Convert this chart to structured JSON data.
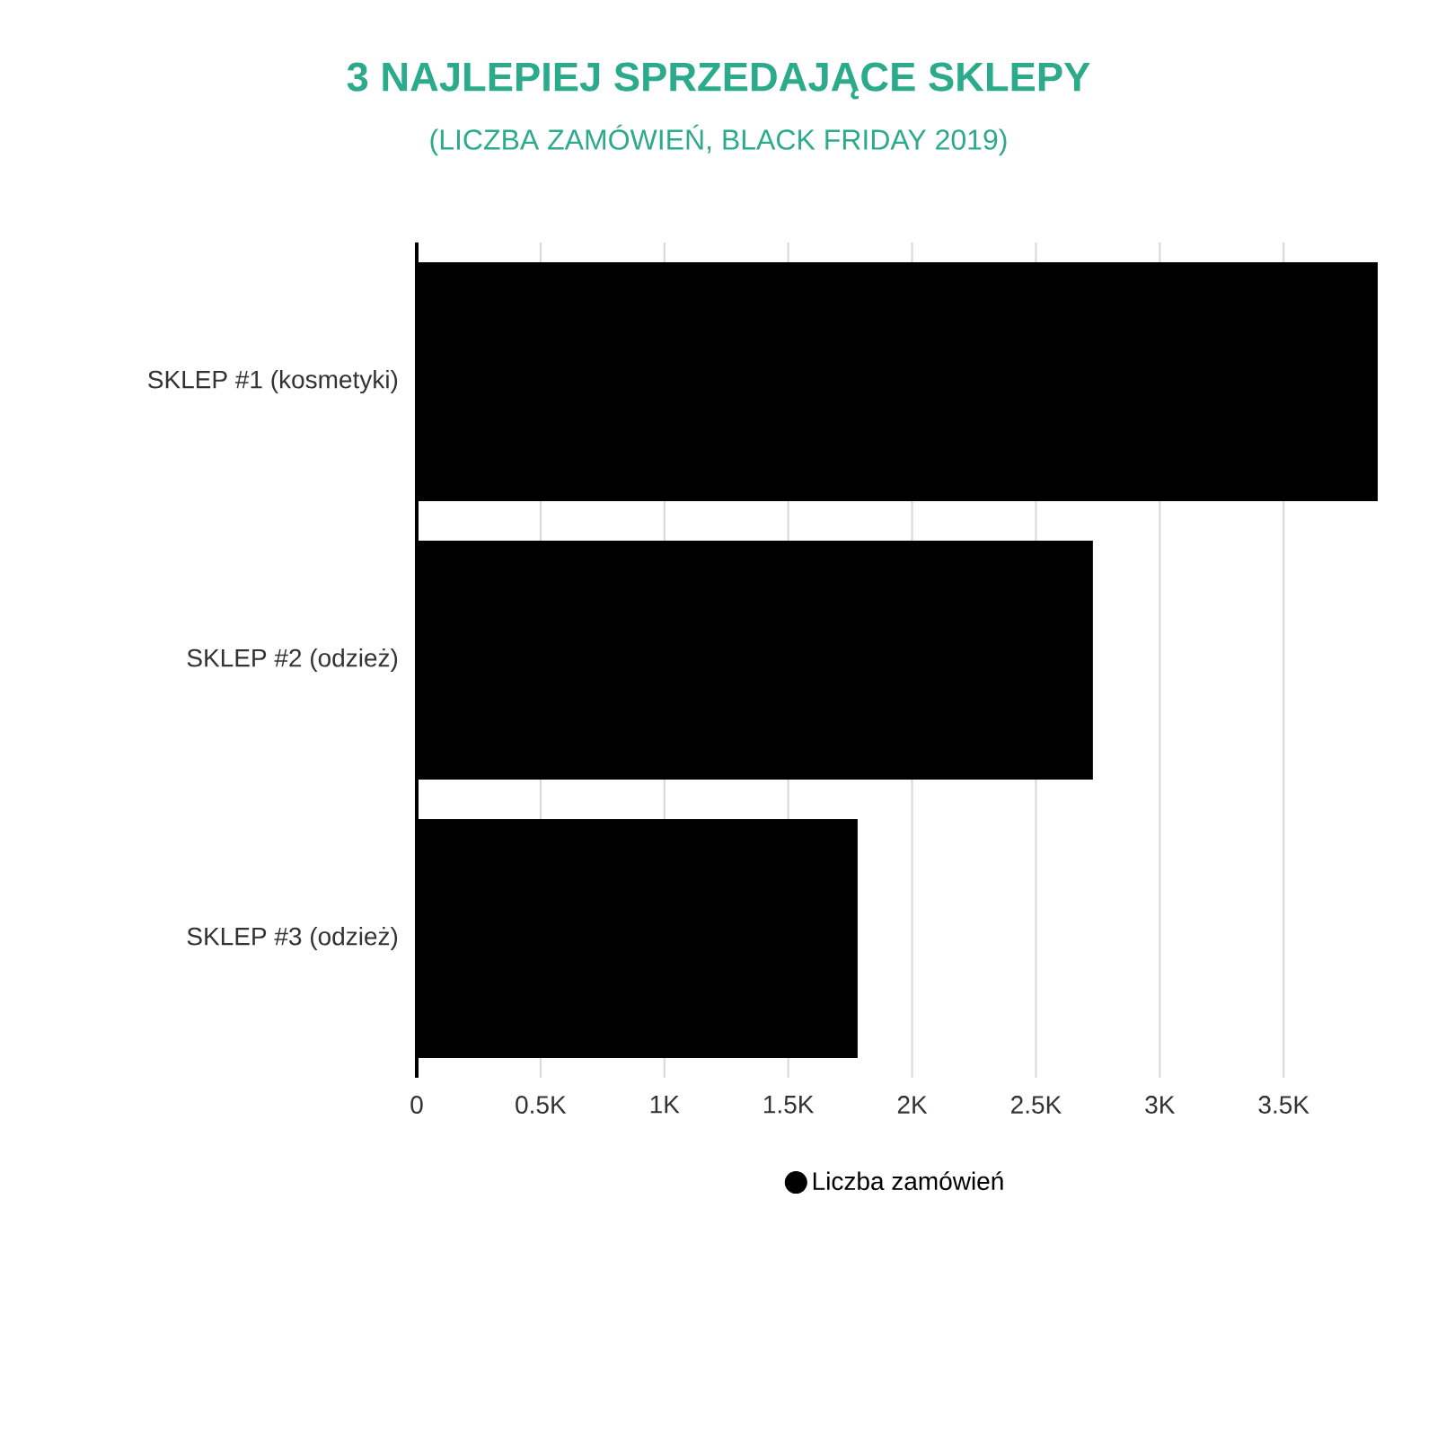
{
  "chart_data": {
    "type": "bar",
    "orientation": "horizontal",
    "title": "3 NAJLEPIEJ SPRZEDAJĄCE SKLEPY",
    "subtitle": "(LICZBA ZAMÓWIEŃ, BLACK FRIDAY 2019)",
    "categories": [
      "SKLEP #1 (kosmetyki)",
      "SKLEP #2 (odzież)",
      "SKLEP #3 (odzież)"
    ],
    "series": [
      {
        "name": "Liczba zamówień",
        "color": "#000000",
        "values": [
          3880,
          2730,
          1780
        ]
      }
    ],
    "xlim": [
      0,
      3880
    ],
    "xticks": [
      0,
      {
        "value": 500,
        "label": "0.5K"
      },
      {
        "value": 1000,
        "label": "1K"
      },
      {
        "value": 1500,
        "label": "1.5K"
      },
      {
        "value": 2000,
        "label": "2K"
      },
      {
        "value": 2500,
        "label": "2.5K"
      },
      {
        "value": 3000,
        "label": "3K"
      },
      {
        "value": 3500,
        "label": "3.5K"
      }
    ],
    "grid": "x",
    "legend": "bottom",
    "marker": "circle"
  }
}
